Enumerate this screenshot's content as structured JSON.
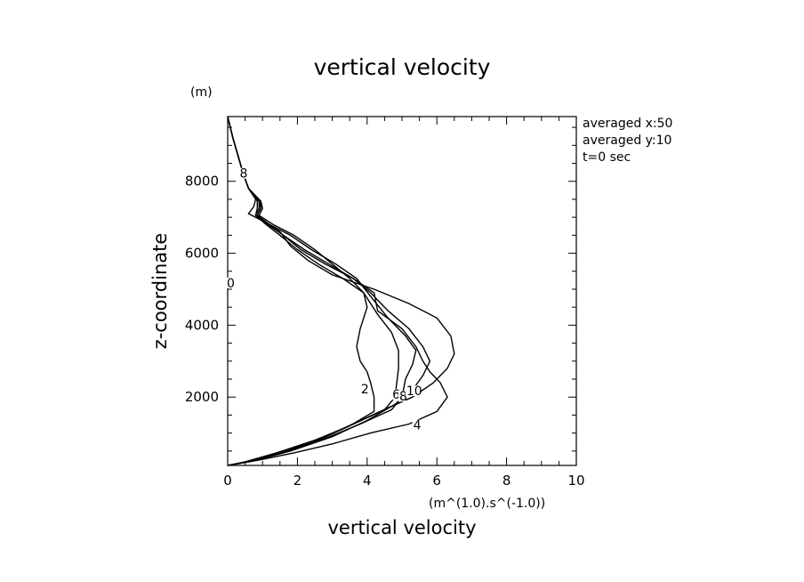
{
  "chart_data": {
    "type": "line",
    "title": "vertical velocity",
    "xlabel": "vertical velocity",
    "xunits": "(m^(1.0).s^(-1.0))",
    "ylabel": "z-coordinate",
    "yunits": "(m)",
    "xlim": [
      0,
      10
    ],
    "ylim": [
      100,
      9800
    ],
    "xticks": [
      0,
      2,
      4,
      6,
      8,
      10
    ],
    "yticks": [
      2000,
      4000,
      6000,
      8000
    ],
    "annotations": [
      "averaged  x:50",
      "averaged  y:10",
      "t=0 sec"
    ],
    "series": [
      {
        "name": "0",
        "points": [
          [
            0,
            9800
          ],
          [
            0.15,
            9200
          ],
          [
            0.3,
            8700
          ],
          [
            0.45,
            8200
          ],
          [
            0.6,
            7800
          ],
          [
            0.8,
            7500
          ],
          [
            0.75,
            7300
          ],
          [
            0.6,
            7100
          ],
          [
            1.0,
            6900
          ],
          [
            1.5,
            6600
          ],
          [
            1.8,
            6200
          ],
          [
            2.3,
            5800
          ],
          [
            3.0,
            5400
          ],
          [
            4.2,
            5000
          ],
          [
            5.2,
            4600
          ],
          [
            6.0,
            4200
          ],
          [
            6.4,
            3700
          ],
          [
            6.5,
            3200
          ],
          [
            6.3,
            2800
          ],
          [
            5.9,
            2400
          ],
          [
            5.3,
            2000
          ],
          [
            4.6,
            1700
          ],
          [
            3.7,
            1300
          ],
          [
            2.8,
            900
          ],
          [
            1.6,
            500
          ],
          [
            0.5,
            200
          ],
          [
            0,
            100
          ]
        ]
      },
      {
        "name": "2",
        "points": [
          [
            0,
            9800
          ],
          [
            0.15,
            9200
          ],
          [
            0.3,
            8700
          ],
          [
            0.45,
            8200
          ],
          [
            0.6,
            7800
          ],
          [
            0.85,
            7450
          ],
          [
            0.85,
            7250
          ],
          [
            0.8,
            7050
          ],
          [
            1.1,
            6800
          ],
          [
            1.5,
            6500
          ],
          [
            2.0,
            6100
          ],
          [
            2.6,
            5700
          ],
          [
            3.3,
            5300
          ],
          [
            3.9,
            4900
          ],
          [
            4.0,
            4500
          ],
          [
            3.8,
            3900
          ],
          [
            3.7,
            3400
          ],
          [
            3.8,
            3000
          ],
          [
            4.0,
            2700
          ],
          [
            4.1,
            2400
          ],
          [
            4.2,
            2000
          ],
          [
            4.2,
            1600
          ],
          [
            3.5,
            1200
          ],
          [
            2.6,
            800
          ],
          [
            1.5,
            450
          ],
          [
            0.5,
            200
          ],
          [
            0,
            100
          ]
        ]
      },
      {
        "name": "4",
        "points": [
          [
            0,
            9800
          ],
          [
            0.15,
            9200
          ],
          [
            0.3,
            8700
          ],
          [
            0.45,
            8200
          ],
          [
            0.6,
            7800
          ],
          [
            0.9,
            7450
          ],
          [
            0.9,
            7250
          ],
          [
            0.8,
            7050
          ],
          [
            1.2,
            6800
          ],
          [
            1.6,
            6500
          ],
          [
            2.1,
            6100
          ],
          [
            2.8,
            5700
          ],
          [
            3.6,
            5300
          ],
          [
            4.2,
            4900
          ],
          [
            4.3,
            4400
          ],
          [
            5.0,
            3900
          ],
          [
            5.4,
            3400
          ],
          [
            5.6,
            3000
          ],
          [
            5.8,
            2700
          ],
          [
            6.1,
            2400
          ],
          [
            6.3,
            2000
          ],
          [
            6.0,
            1600
          ],
          [
            5.2,
            1250
          ],
          [
            4.1,
            1000
          ],
          [
            3.0,
            700
          ],
          [
            1.9,
            450
          ],
          [
            0.9,
            250
          ],
          [
            0,
            100
          ]
        ]
      },
      {
        "name": "6",
        "points": [
          [
            0,
            9800
          ],
          [
            0.15,
            9200
          ],
          [
            0.3,
            8700
          ],
          [
            0.45,
            8200
          ],
          [
            0.6,
            7800
          ],
          [
            0.95,
            7450
          ],
          [
            1.0,
            7250
          ],
          [
            0.9,
            7050
          ],
          [
            1.3,
            6800
          ],
          [
            1.9,
            6500
          ],
          [
            2.5,
            6100
          ],
          [
            3.0,
            5700
          ],
          [
            3.5,
            5300
          ],
          [
            3.9,
            4900
          ],
          [
            4.3,
            4300
          ],
          [
            4.7,
            3800
          ],
          [
            4.9,
            3300
          ],
          [
            4.9,
            2800
          ],
          [
            4.85,
            2400
          ],
          [
            4.8,
            2000
          ],
          [
            4.5,
            1650
          ],
          [
            3.5,
            1200
          ],
          [
            2.5,
            800
          ],
          [
            1.4,
            450
          ],
          [
            0.5,
            200
          ],
          [
            0,
            100
          ]
        ]
      },
      {
        "name": "8",
        "points": [
          [
            0,
            9800
          ],
          [
            0.15,
            9200
          ],
          [
            0.3,
            8700
          ],
          [
            0.45,
            8200
          ],
          [
            0.6,
            7800
          ],
          [
            0.95,
            7450
          ],
          [
            0.95,
            7250
          ],
          [
            0.85,
            7050
          ],
          [
            1.2,
            6800
          ],
          [
            1.8,
            6500
          ],
          [
            2.4,
            6100
          ],
          [
            3.1,
            5700
          ],
          [
            3.7,
            5300
          ],
          [
            4.1,
            4800
          ],
          [
            4.6,
            4200
          ],
          [
            5.1,
            3700
          ],
          [
            5.4,
            3300
          ],
          [
            5.3,
            2900
          ],
          [
            5.1,
            2500
          ],
          [
            5.0,
            2000
          ],
          [
            4.7,
            1650
          ],
          [
            3.8,
            1250
          ],
          [
            2.8,
            850
          ],
          [
            1.6,
            450
          ],
          [
            0.6,
            200
          ],
          [
            0,
            100
          ]
        ]
      },
      {
        "name": "10",
        "points": [
          [
            0,
            9800
          ],
          [
            0.15,
            9200
          ],
          [
            0.3,
            8700
          ],
          [
            0.45,
            8200
          ],
          [
            0.6,
            7800
          ],
          [
            0.9,
            7450
          ],
          [
            0.95,
            7250
          ],
          [
            0.85,
            7050
          ],
          [
            1.15,
            6800
          ],
          [
            1.6,
            6500
          ],
          [
            2.2,
            6100
          ],
          [
            2.9,
            5700
          ],
          [
            3.6,
            5300
          ],
          [
            4.1,
            4900
          ],
          [
            4.6,
            4400
          ],
          [
            5.2,
            3900
          ],
          [
            5.6,
            3400
          ],
          [
            5.8,
            3000
          ],
          [
            5.6,
            2600
          ],
          [
            5.3,
            2200
          ],
          [
            4.8,
            1800
          ],
          [
            4.0,
            1350
          ],
          [
            3.0,
            900
          ],
          [
            1.8,
            500
          ],
          [
            0.7,
            220
          ],
          [
            0,
            100
          ]
        ]
      }
    ],
    "contour_labels": [
      {
        "text": "0",
        "x": 0.05,
        "y": 5100
      },
      {
        "text": "2",
        "x": 3.9,
        "y": 2150
      },
      {
        "text": "4",
        "x": 5.4,
        "y": 1150
      },
      {
        "text": "6",
        "x": 4.8,
        "y": 2000
      },
      {
        "text": "8",
        "x": 5.0,
        "y": 1950
      },
      {
        "text": "10",
        "x": 5.2,
        "y": 2100
      },
      {
        "text": "8",
        "x": 0.42,
        "y": 8150
      }
    ]
  }
}
